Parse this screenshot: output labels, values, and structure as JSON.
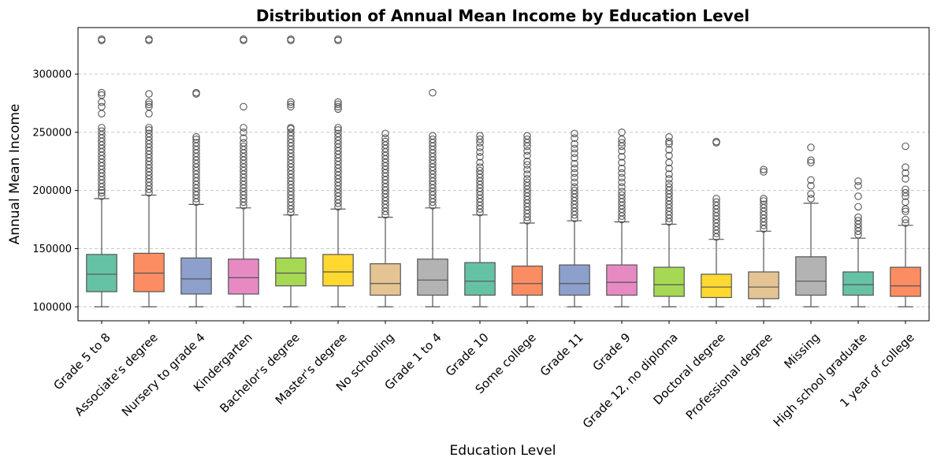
{
  "chart_data": {
    "type": "box",
    "title": "Distribution of Annual Mean Income by Education Level",
    "xlabel": "Education Level",
    "ylabel": "Annual Mean Income",
    "ylim": [
      88000,
      340000
    ],
    "yticks": [
      100000,
      150000,
      200000,
      250000,
      300000
    ],
    "ytick_labels": [
      "100000",
      "150000",
      "200000",
      "250000",
      "300000"
    ],
    "grid": "y-dashed",
    "categories": [
      {
        "label": "Grade 5 to 8",
        "color": "#66c2a5",
        "whislo": 100000,
        "q1": 113000,
        "median": 128000,
        "q3": 145000,
        "whishi": 193000,
        "fliers": [
          195000,
          198000,
          200000,
          203000,
          206000,
          209000,
          212000,
          215000,
          218000,
          221000,
          224000,
          227000,
          230000,
          233000,
          236000,
          239000,
          242000,
          245000,
          248000,
          251000,
          254000,
          266000,
          272000,
          276000,
          282000,
          284000,
          329000,
          330000
        ]
      },
      {
        "label": "Associate's degree",
        "color": "#fc8d62",
        "whislo": 100000,
        "q1": 113000,
        "median": 129000,
        "q3": 146000,
        "whishi": 196000,
        "fliers": [
          198000,
          201000,
          204000,
          207000,
          210000,
          213000,
          216000,
          219000,
          222000,
          225000,
          228000,
          231000,
          234000,
          237000,
          240000,
          243000,
          246000,
          249000,
          252000,
          254000,
          266000,
          272000,
          274000,
          276000,
          283000,
          329000,
          330000
        ]
      },
      {
        "label": "Nursery to grade 4",
        "color": "#8da0cb",
        "whislo": 100000,
        "q1": 111000,
        "median": 124000,
        "q3": 142000,
        "whishi": 188000,
        "fliers": [
          190000,
          193000,
          196000,
          199000,
          202000,
          205000,
          208000,
          211000,
          214000,
          217000,
          220000,
          223000,
          226000,
          229000,
          232000,
          235000,
          238000,
          241000,
          244000,
          246000,
          283000,
          284000
        ]
      },
      {
        "label": "Kindergarten",
        "color": "#e78ac3",
        "whislo": 100000,
        "q1": 111000,
        "median": 125000,
        "q3": 141000,
        "whishi": 185000,
        "fliers": [
          187000,
          190000,
          193000,
          196000,
          199000,
          202000,
          205000,
          208000,
          211000,
          214000,
          217000,
          220000,
          223000,
          226000,
          229000,
          232000,
          235000,
          238000,
          241000,
          245000,
          250000,
          254000,
          272000,
          329000,
          330000
        ]
      },
      {
        "label": "Bachelor's degree",
        "color": "#a6d854",
        "whislo": 100000,
        "q1": 118000,
        "median": 129000,
        "q3": 142000,
        "whishi": 179000,
        "fliers": [
          181000,
          184000,
          187000,
          190000,
          193000,
          196000,
          199000,
          202000,
          205000,
          208000,
          211000,
          214000,
          217000,
          220000,
          223000,
          226000,
          229000,
          232000,
          235000,
          238000,
          241000,
          244000,
          247000,
          250000,
          253000,
          254000,
          272000,
          274000,
          276000,
          329000,
          330000
        ]
      },
      {
        "label": "Master's degree",
        "color": "#ffd92f",
        "whislo": 100000,
        "q1": 118000,
        "median": 130000,
        "q3": 145000,
        "whishi": 184000,
        "fliers": [
          186000,
          189000,
          192000,
          195000,
          198000,
          201000,
          204000,
          207000,
          210000,
          213000,
          216000,
          219000,
          222000,
          225000,
          228000,
          231000,
          234000,
          237000,
          240000,
          243000,
          246000,
          249000,
          252000,
          254000,
          270000,
          272000,
          274000,
          276000,
          329000,
          330000
        ]
      },
      {
        "label": "No schooling",
        "color": "#e5c494",
        "whislo": 100000,
        "q1": 110000,
        "median": 120000,
        "q3": 137000,
        "whishi": 177000,
        "fliers": [
          179000,
          182000,
          185000,
          188000,
          191000,
          194000,
          197000,
          200000,
          203000,
          206000,
          209000,
          212000,
          215000,
          218000,
          221000,
          224000,
          227000,
          230000,
          233000,
          236000,
          239000,
          242000,
          245000,
          249000
        ]
      },
      {
        "label": "Grade 1 to 4",
        "color": "#b3b3b3",
        "whislo": 100000,
        "q1": 110000,
        "median": 123000,
        "q3": 141000,
        "whishi": 185000,
        "fliers": [
          187000,
          190000,
          193000,
          196000,
          199000,
          202000,
          205000,
          208000,
          211000,
          214000,
          217000,
          220000,
          223000,
          226000,
          229000,
          232000,
          235000,
          238000,
          241000,
          244000,
          247000,
          284000
        ]
      },
      {
        "label": "Grade 10",
        "color": "#66c2a5",
        "whislo": 100000,
        "q1": 110000,
        "median": 122000,
        "q3": 138000,
        "whishi": 179000,
        "fliers": [
          181000,
          184000,
          187000,
          190000,
          193000,
          196000,
          199000,
          202000,
          205000,
          208000,
          211000,
          214000,
          217000,
          220000,
          224000,
          229000,
          233000,
          237000,
          241000,
          244000,
          247000
        ]
      },
      {
        "label": "Some college",
        "color": "#fc8d62",
        "whislo": 100000,
        "q1": 110000,
        "median": 120000,
        "q3": 135000,
        "whishi": 172000,
        "fliers": [
          174000,
          177000,
          180000,
          183000,
          186000,
          189000,
          192000,
          195000,
          198000,
          201000,
          204000,
          207000,
          210000,
          214000,
          218000,
          222000,
          225000,
          230000,
          234000,
          238000,
          241000,
          244000,
          247000
        ]
      },
      {
        "label": "Grade 11",
        "color": "#8da0cb",
        "whislo": 100000,
        "q1": 110000,
        "median": 120000,
        "q3": 136000,
        "whishi": 174000,
        "fliers": [
          176000,
          179000,
          182000,
          185000,
          188000,
          191000,
          194000,
          197000,
          200000,
          203000,
          207000,
          211000,
          215000,
          219000,
          223000,
          228000,
          232000,
          236000,
          240000,
          245000,
          249000
        ]
      },
      {
        "label": "Grade 9",
        "color": "#e78ac3",
        "whislo": 100000,
        "q1": 110000,
        "median": 121000,
        "q3": 136000,
        "whishi": 173000,
        "fliers": [
          175000,
          178000,
          181000,
          184000,
          187000,
          190000,
          193000,
          196000,
          199000,
          203000,
          207000,
          211000,
          215000,
          219000,
          224000,
          229000,
          234000,
          238000,
          241000,
          244000,
          250000
        ]
      },
      {
        "label": "Grade 12, no diploma",
        "color": "#a6d854",
        "whislo": 100000,
        "q1": 109000,
        "median": 119000,
        "q3": 134000,
        "whishi": 171000,
        "fliers": [
          173000,
          176000,
          179000,
          182000,
          185000,
          188000,
          191000,
          194000,
          197000,
          200000,
          203000,
          206000,
          210000,
          214000,
          219000,
          224000,
          230000,
          235000,
          240000,
          242000,
          246000
        ]
      },
      {
        "label": "Doctoral degree",
        "color": "#ffd92f",
        "whislo": 100000,
        "q1": 108000,
        "median": 117000,
        "q3": 128000,
        "whishi": 158000,
        "fliers": [
          160000,
          163000,
          166000,
          169000,
          172000,
          175000,
          178000,
          181000,
          184000,
          187000,
          190000,
          193000,
          241000,
          242000
        ]
      },
      {
        "label": "Professional degree",
        "color": "#e5c494",
        "whislo": 100000,
        "q1": 107000,
        "median": 117000,
        "q3": 130000,
        "whishi": 165000,
        "fliers": [
          167000,
          170000,
          173000,
          176000,
          179000,
          182000,
          185000,
          188000,
          191000,
          193000,
          216000,
          218000
        ]
      },
      {
        "label": "Missing",
        "color": "#b3b3b3",
        "whislo": 100000,
        "q1": 110000,
        "median": 122000,
        "q3": 143000,
        "whishi": 189000,
        "fliers": [
          193000,
          197000,
          204000,
          209000,
          224000,
          226000,
          237000
        ]
      },
      {
        "label": "High school graduate",
        "color": "#66c2a5",
        "whislo": 100000,
        "q1": 110000,
        "median": 119000,
        "q3": 130000,
        "whishi": 159000,
        "fliers": [
          162000,
          165000,
          168000,
          171000,
          174000,
          177000,
          186000,
          195000,
          204000,
          208000
        ]
      },
      {
        "label": "1 year of college",
        "color": "#fc8d62",
        "whislo": 100000,
        "q1": 109000,
        "median": 118000,
        "q3": 134000,
        "whishi": 170000,
        "fliers": [
          172000,
          175000,
          182000,
          184000,
          190000,
          195000,
          198000,
          201000,
          210000,
          215000,
          220000,
          238000
        ]
      }
    ]
  }
}
